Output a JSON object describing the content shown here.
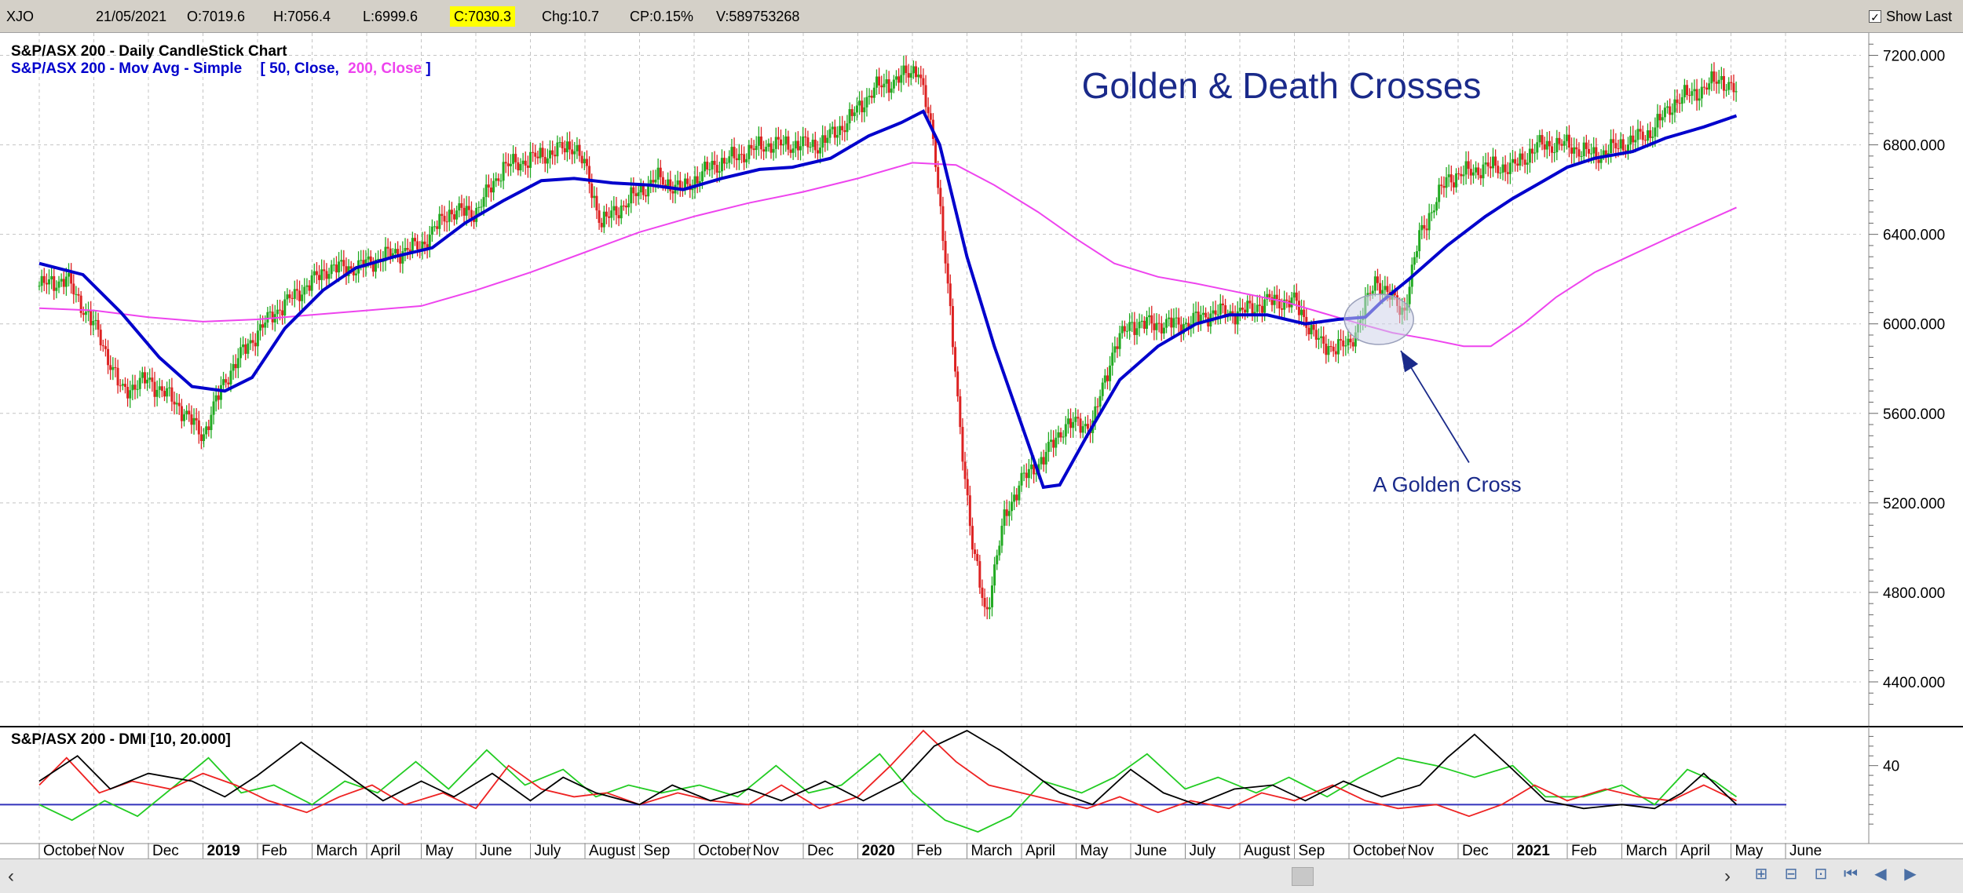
{
  "header": {
    "symbol": "XJO",
    "date": "21/05/2021",
    "open": "O:7019.6",
    "high": "H:7056.4",
    "low": "L:6999.6",
    "close": "C:7030.3",
    "change": "Chg:10.7",
    "change_pct": "CP:0.15%",
    "volume": "V:589753268",
    "show_last_label": "Show Last",
    "show_last_checked": true
  },
  "legend": {
    "line1": "S&P/ASX 200 - Daily CandleStick Chart",
    "line2_prefix": "S&P/ASX 200 - Mov Avg - Simple",
    "line2_open": "[",
    "line2_a": "50, Close,",
    "line2_b": "200, Close",
    "line2_close": "]"
  },
  "colors": {
    "ma50": "#0000cc",
    "ma200": "#ee44ee",
    "candle_up": "#22aa22",
    "candle_down": "#dd2222",
    "title": "#1a2a8a",
    "dmi_plus": "#22cc22",
    "dmi_minus": "#ee2222",
    "adx": "#000000",
    "dmi_ref": "#3333bb"
  },
  "icons": [
    "scroll-left-icon",
    "scroll-right-icon",
    "zoom-in-icon",
    "zoom-out-icon",
    "fit-icon",
    "first-icon",
    "prev-icon",
    "next-icon"
  ],
  "chart_data": {
    "type": "candlestick",
    "title": "Golden & Death Crosses",
    "annotation": "A Golden Cross",
    "ylim": [
      4200,
      7300
    ],
    "y_ticks": [
      "7200.000",
      "6800.000",
      "6400.000",
      "6000.000",
      "5600.000",
      "5200.000",
      "4800.000",
      "4400.000"
    ],
    "y_tick_values": [
      7200,
      6800,
      6400,
      6000,
      5600,
      5200,
      4800,
      4400
    ],
    "months": [
      {
        "label": "October",
        "bold": false
      },
      {
        "label": "Nov",
        "bold": false
      },
      {
        "label": "Dec",
        "bold": false
      },
      {
        "label": "2019",
        "bold": true
      },
      {
        "label": "Feb",
        "bold": false
      },
      {
        "label": "March",
        "bold": false
      },
      {
        "label": "April",
        "bold": false
      },
      {
        "label": "May",
        "bold": false
      },
      {
        "label": "June",
        "bold": false
      },
      {
        "label": "July",
        "bold": false
      },
      {
        "label": "August",
        "bold": false
      },
      {
        "label": "Sep",
        "bold": false
      },
      {
        "label": "October",
        "bold": false
      },
      {
        "label": "Nov",
        "bold": false
      },
      {
        "label": "Dec",
        "bold": false
      },
      {
        "label": "2020",
        "bold": true
      },
      {
        "label": "Feb",
        "bold": false
      },
      {
        "label": "March",
        "bold": false
      },
      {
        "label": "April",
        "bold": false
      },
      {
        "label": "May",
        "bold": false
      },
      {
        "label": "June",
        "bold": false
      },
      {
        "label": "July",
        "bold": false
      },
      {
        "label": "August",
        "bold": false
      },
      {
        "label": "Sep",
        "bold": false
      },
      {
        "label": "October",
        "bold": false
      },
      {
        "label": "Nov",
        "bold": false
      },
      {
        "label": "Dec",
        "bold": false
      },
      {
        "label": "2021",
        "bold": true
      },
      {
        "label": "Feb",
        "bold": false
      },
      {
        "label": "March",
        "bold": false
      },
      {
        "label": "April",
        "bold": false
      },
      {
        "label": "May",
        "bold": false
      },
      {
        "label": "June",
        "bold": false
      }
    ],
    "price_path": [
      [
        0,
        6170
      ],
      [
        0.5,
        6200
      ],
      [
        1.1,
        5950
      ],
      [
        1.5,
        5700
      ],
      [
        2,
        5750
      ],
      [
        2.5,
        5650
      ],
      [
        3,
        5500
      ],
      [
        3.4,
        5750
      ],
      [
        3.8,
        5900
      ],
      [
        4.3,
        6050
      ],
      [
        4.8,
        6150
      ],
      [
        5.3,
        6250
      ],
      [
        5.8,
        6250
      ],
      [
        6.3,
        6300
      ],
      [
        7,
        6350
      ],
      [
        7.5,
        6500
      ],
      [
        8,
        6500
      ],
      [
        8.5,
        6700
      ],
      [
        9.2,
        6750
      ],
      [
        9.8,
        6800
      ],
      [
        10,
        6700
      ],
      [
        10.3,
        6450
      ],
      [
        10.8,
        6550
      ],
      [
        11.3,
        6650
      ],
      [
        11.8,
        6600
      ],
      [
        12.3,
        6700
      ],
      [
        12.8,
        6750
      ],
      [
        13.3,
        6800
      ],
      [
        13.8,
        6800
      ],
      [
        14.3,
        6800
      ],
      [
        14.8,
        6900
      ],
      [
        15.3,
        7050
      ],
      [
        15.8,
        7100
      ],
      [
        16.1,
        7150
      ],
      [
        16.4,
        6800
      ],
      [
        16.6,
        6300
      ],
      [
        16.85,
        5600
      ],
      [
        17.1,
        5000
      ],
      [
        17.35,
        4700
      ],
      [
        17.7,
        5150
      ],
      [
        18,
        5300
      ],
      [
        18.4,
        5400
      ],
      [
        18.8,
        5550
      ],
      [
        19.3,
        5550
      ],
      [
        19.7,
        5900
      ],
      [
        20,
        6000
      ],
      [
        20.5,
        6000
      ],
      [
        21,
        6000
      ],
      [
        21.5,
        6050
      ],
      [
        22,
        6050
      ],
      [
        22.5,
        6100
      ],
      [
        23,
        6100
      ],
      [
        23.5,
        5900
      ],
      [
        24,
        5900
      ],
      [
        24.5,
        6200
      ],
      [
        25,
        6050
      ],
      [
        25.3,
        6400
      ],
      [
        25.8,
        6650
      ],
      [
        26.5,
        6700
      ],
      [
        27,
        6700
      ],
      [
        27.5,
        6800
      ],
      [
        28,
        6800
      ],
      [
        28.5,
        6750
      ],
      [
        29,
        6800
      ],
      [
        29.5,
        6850
      ],
      [
        30,
        7000
      ],
      [
        30.5,
        7050
      ],
      [
        30.8,
        7100
      ],
      [
        31.1,
        7030
      ]
    ],
    "ma50": [
      [
        0,
        6270
      ],
      [
        0.8,
        6220
      ],
      [
        1.5,
        6050
      ],
      [
        2.2,
        5850
      ],
      [
        2.8,
        5720
      ],
      [
        3.4,
        5700
      ],
      [
        3.9,
        5760
      ],
      [
        4.5,
        5980
      ],
      [
        5.2,
        6150
      ],
      [
        5.8,
        6250
      ],
      [
        6.5,
        6300
      ],
      [
        7.2,
        6340
      ],
      [
        7.8,
        6450
      ],
      [
        8.5,
        6550
      ],
      [
        9.2,
        6640
      ],
      [
        9.8,
        6650
      ],
      [
        10.5,
        6630
      ],
      [
        11.2,
        6620
      ],
      [
        11.8,
        6600
      ],
      [
        12.5,
        6650
      ],
      [
        13.2,
        6690
      ],
      [
        13.8,
        6700
      ],
      [
        14.5,
        6740
      ],
      [
        15.2,
        6840
      ],
      [
        15.8,
        6900
      ],
      [
        16.2,
        6950
      ],
      [
        16.5,
        6800
      ],
      [
        17,
        6300
      ],
      [
        17.5,
        5900
      ],
      [
        18,
        5550
      ],
      [
        18.4,
        5270
      ],
      [
        18.7,
        5280
      ],
      [
        19.2,
        5500
      ],
      [
        19.8,
        5750
      ],
      [
        20.5,
        5900
      ],
      [
        21.2,
        6000
      ],
      [
        21.8,
        6040
      ],
      [
        22.5,
        6040
      ],
      [
        23.2,
        6000
      ],
      [
        23.8,
        6020
      ],
      [
        24.3,
        6030
      ],
      [
        24.6,
        6100
      ],
      [
        25.1,
        6200
      ],
      [
        25.8,
        6350
      ],
      [
        26.5,
        6480
      ],
      [
        27,
        6560
      ],
      [
        27.5,
        6630
      ],
      [
        28,
        6700
      ],
      [
        28.5,
        6740
      ],
      [
        29.2,
        6770
      ],
      [
        29.8,
        6830
      ],
      [
        30.5,
        6880
      ],
      [
        31.1,
        6930
      ]
    ],
    "ma200": [
      [
        0,
        6070
      ],
      [
        1,
        6060
      ],
      [
        2,
        6030
      ],
      [
        3,
        6010
      ],
      [
        4,
        6020
      ],
      [
        5,
        6040
      ],
      [
        6,
        6060
      ],
      [
        7,
        6080
      ],
      [
        8,
        6150
      ],
      [
        9,
        6230
      ],
      [
        10,
        6320
      ],
      [
        11,
        6410
      ],
      [
        12,
        6480
      ],
      [
        13,
        6540
      ],
      [
        14,
        6590
      ],
      [
        15,
        6650
      ],
      [
        16,
        6720
      ],
      [
        16.8,
        6710
      ],
      [
        17.5,
        6620
      ],
      [
        18.3,
        6500
      ],
      [
        19,
        6380
      ],
      [
        19.7,
        6270
      ],
      [
        20.5,
        6210
      ],
      [
        21.2,
        6180
      ],
      [
        22,
        6140
      ],
      [
        22.8,
        6100
      ],
      [
        23.5,
        6050
      ],
      [
        24.2,
        6000
      ],
      [
        24.8,
        5960
      ],
      [
        25.5,
        5930
      ],
      [
        26.1,
        5900
      ],
      [
        26.6,
        5900
      ],
      [
        27.2,
        6000
      ],
      [
        27.8,
        6120
      ],
      [
        28.5,
        6230
      ],
      [
        29.2,
        6310
      ],
      [
        30,
        6400
      ],
      [
        31.1,
        6520
      ]
    ],
    "dmi": {
      "label": "S&P/ASX 200 - DMI [10, 20.000]",
      "ylim": [
        0,
        60
      ],
      "y_tick": "40",
      "y_tick_value": 40,
      "reference": 20,
      "adx": [
        [
          0,
          32
        ],
        [
          0.7,
          45
        ],
        [
          1.3,
          28
        ],
        [
          2,
          36
        ],
        [
          2.8,
          32
        ],
        [
          3.4,
          24
        ],
        [
          4,
          35
        ],
        [
          4.8,
          52
        ],
        [
          5.5,
          38
        ],
        [
          6.3,
          22
        ],
        [
          7,
          32
        ],
        [
          7.6,
          24
        ],
        [
          8.3,
          36
        ],
        [
          9,
          22
        ],
        [
          9.6,
          34
        ],
        [
          10.2,
          26
        ],
        [
          11,
          20
        ],
        [
          11.6,
          30
        ],
        [
          12.3,
          22
        ],
        [
          13,
          28
        ],
        [
          13.6,
          22
        ],
        [
          14.4,
          32
        ],
        [
          15.1,
          22
        ],
        [
          15.8,
          32
        ],
        [
          16.4,
          50
        ],
        [
          17,
          58
        ],
        [
          17.6,
          48
        ],
        [
          18.1,
          38
        ],
        [
          18.7,
          26
        ],
        [
          19.3,
          20
        ],
        [
          20,
          38
        ],
        [
          20.6,
          26
        ],
        [
          21.2,
          20
        ],
        [
          21.9,
          28
        ],
        [
          22.6,
          30
        ],
        [
          23.2,
          22
        ],
        [
          23.9,
          32
        ],
        [
          24.6,
          24
        ],
        [
          25.3,
          30
        ],
        [
          25.8,
          44
        ],
        [
          26.3,
          56
        ],
        [
          27,
          38
        ],
        [
          27.6,
          22
        ],
        [
          28.3,
          18
        ],
        [
          29,
          20
        ],
        [
          29.6,
          18
        ],
        [
          30.1,
          26
        ],
        [
          30.5,
          36
        ],
        [
          31.1,
          20
        ]
      ],
      "plus_di": [
        [
          0,
          20
        ],
        [
          0.6,
          12
        ],
        [
          1.2,
          22
        ],
        [
          1.8,
          14
        ],
        [
          2.5,
          30
        ],
        [
          3.1,
          44
        ],
        [
          3.7,
          26
        ],
        [
          4.3,
          30
        ],
        [
          5,
          20
        ],
        [
          5.6,
          32
        ],
        [
          6.2,
          26
        ],
        [
          6.9,
          42
        ],
        [
          7.5,
          28
        ],
        [
          8.2,
          48
        ],
        [
          8.9,
          30
        ],
        [
          9.6,
          38
        ],
        [
          10.2,
          24
        ],
        [
          10.8,
          30
        ],
        [
          11.4,
          26
        ],
        [
          12.1,
          30
        ],
        [
          12.8,
          24
        ],
        [
          13.5,
          40
        ],
        [
          14.1,
          26
        ],
        [
          14.7,
          30
        ],
        [
          15.4,
          46
        ],
        [
          16,
          26
        ],
        [
          16.6,
          12
        ],
        [
          17.2,
          6
        ],
        [
          17.8,
          14
        ],
        [
          18.4,
          32
        ],
        [
          19.1,
          26
        ],
        [
          19.7,
          34
        ],
        [
          20.3,
          46
        ],
        [
          21,
          28
        ],
        [
          21.6,
          34
        ],
        [
          22.3,
          26
        ],
        [
          22.9,
          34
        ],
        [
          23.6,
          24
        ],
        [
          24.2,
          34
        ],
        [
          24.9,
          44
        ],
        [
          25.6,
          40
        ],
        [
          26.3,
          34
        ],
        [
          27,
          40
        ],
        [
          27.6,
          24
        ],
        [
          28.3,
          24
        ],
        [
          29,
          30
        ],
        [
          29.6,
          20
        ],
        [
          30.2,
          38
        ],
        [
          30.7,
          32
        ],
        [
          31.1,
          24
        ]
      ],
      "minus_di": [
        [
          0,
          30
        ],
        [
          0.5,
          44
        ],
        [
          1.1,
          26
        ],
        [
          1.7,
          32
        ],
        [
          2.4,
          28
        ],
        [
          3,
          36
        ],
        [
          3.6,
          30
        ],
        [
          4.2,
          22
        ],
        [
          4.9,
          16
        ],
        [
          5.5,
          24
        ],
        [
          6.1,
          30
        ],
        [
          6.7,
          20
        ],
        [
          7.4,
          26
        ],
        [
          8,
          18
        ],
        [
          8.6,
          40
        ],
        [
          9.2,
          28
        ],
        [
          9.8,
          24
        ],
        [
          10.4,
          26
        ],
        [
          11,
          20
        ],
        [
          11.7,
          26
        ],
        [
          12.3,
          22
        ],
        [
          13,
          20
        ],
        [
          13.6,
          30
        ],
        [
          14.3,
          18
        ],
        [
          15,
          24
        ],
        [
          15.6,
          40
        ],
        [
          16.2,
          58
        ],
        [
          16.8,
          42
        ],
        [
          17.4,
          30
        ],
        [
          18,
          26
        ],
        [
          18.6,
          22
        ],
        [
          19.2,
          18
        ],
        [
          19.8,
          24
        ],
        [
          20.5,
          16
        ],
        [
          21.1,
          22
        ],
        [
          21.8,
          18
        ],
        [
          22.4,
          26
        ],
        [
          23,
          22
        ],
        [
          23.7,
          30
        ],
        [
          24.3,
          22
        ],
        [
          24.9,
          18
        ],
        [
          25.6,
          20
        ],
        [
          26.2,
          14
        ],
        [
          26.8,
          20
        ],
        [
          27.4,
          30
        ],
        [
          28,
          22
        ],
        [
          28.7,
          28
        ],
        [
          29.3,
          24
        ],
        [
          29.9,
          22
        ],
        [
          30.5,
          30
        ],
        [
          31.1,
          22
        ]
      ]
    }
  }
}
